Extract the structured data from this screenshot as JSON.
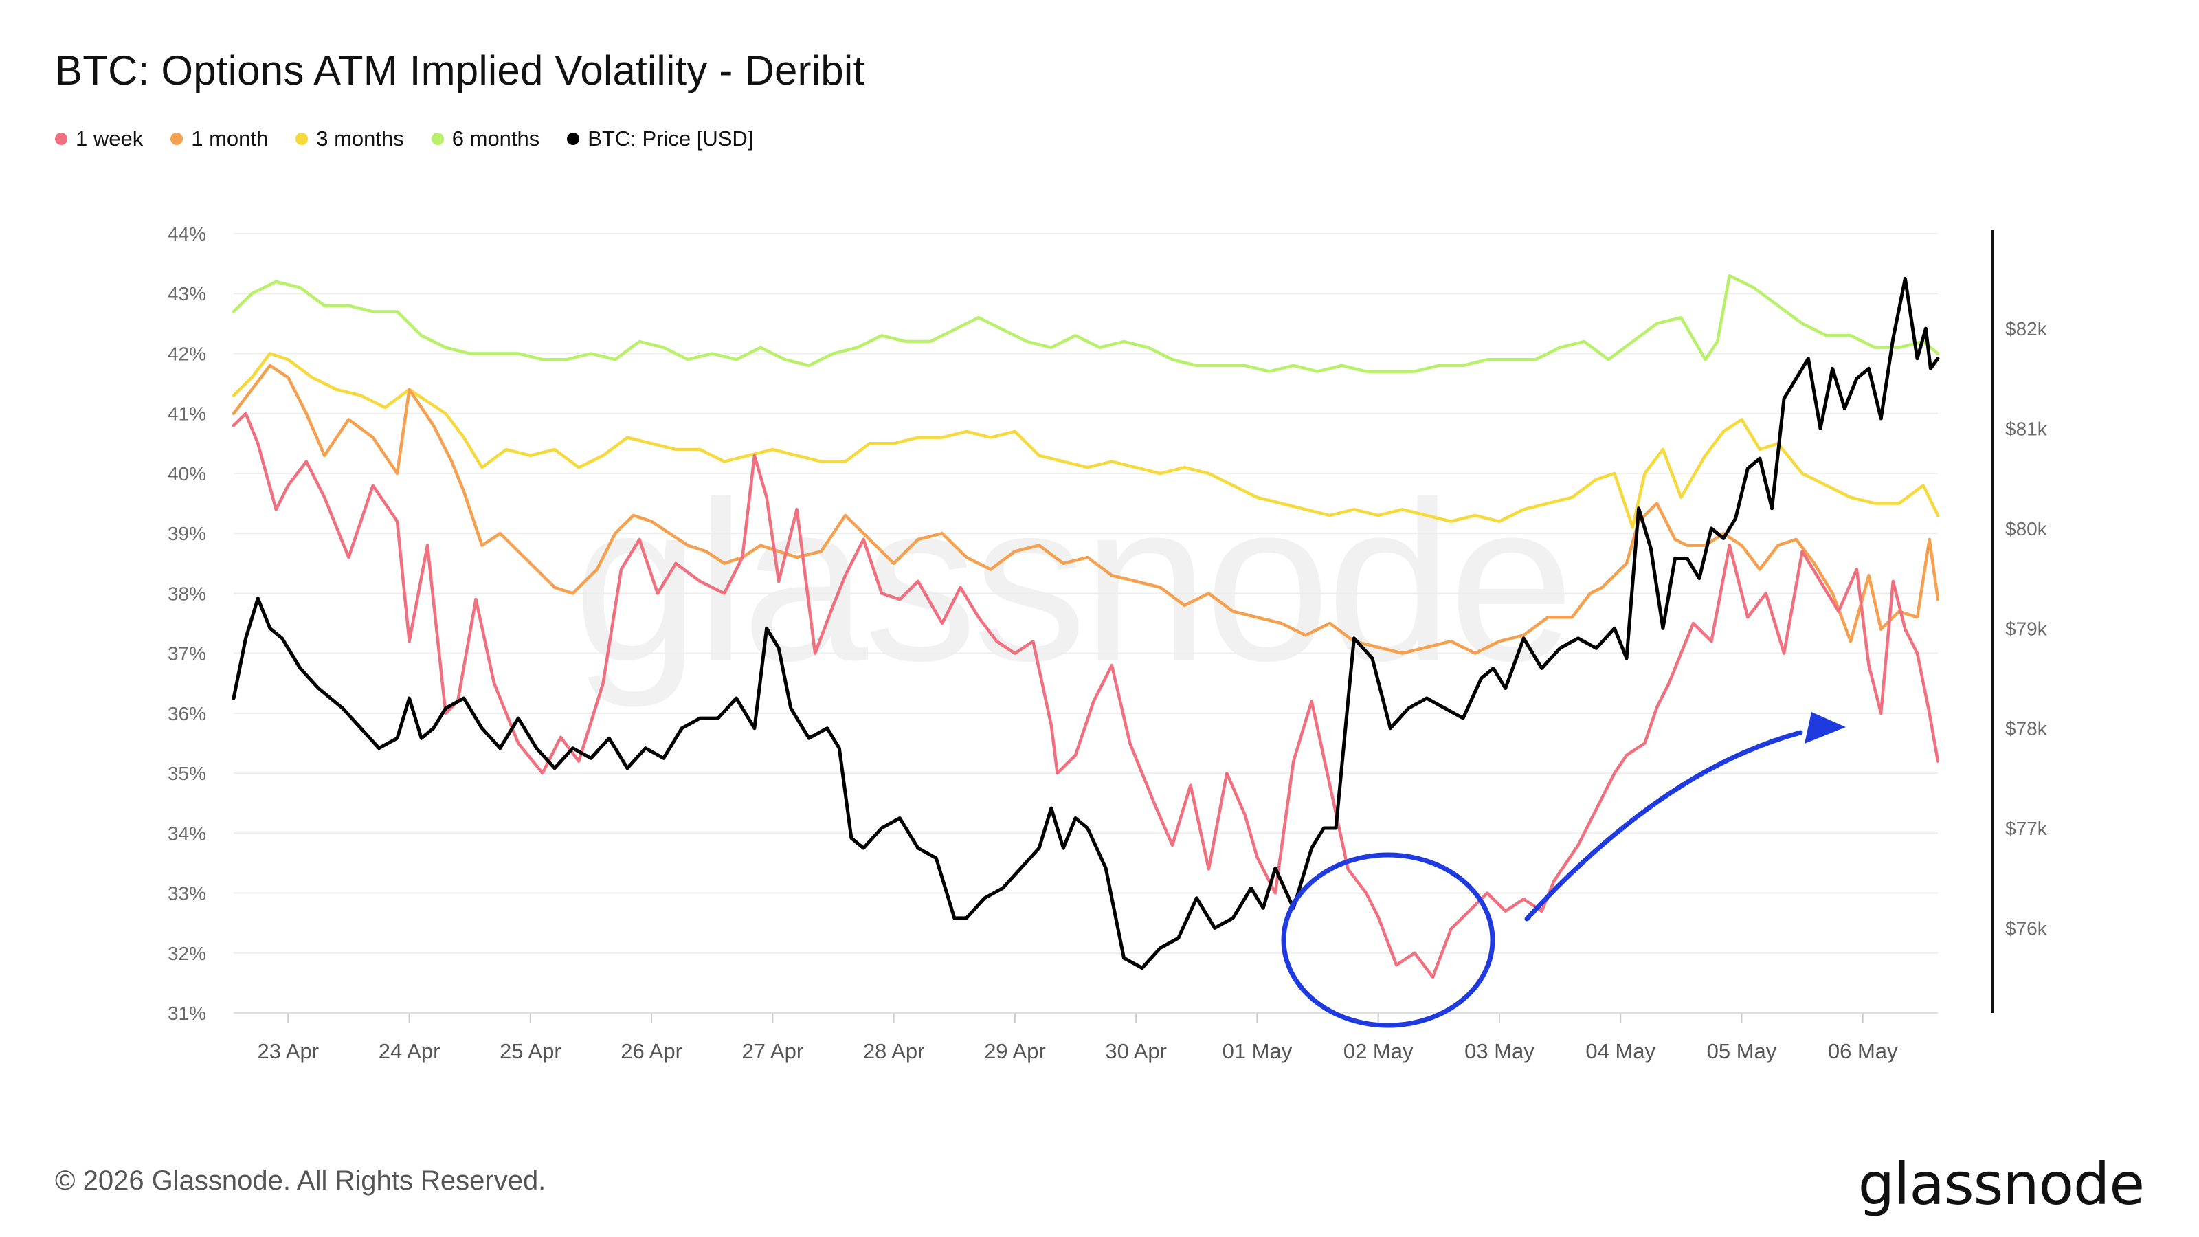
{
  "header": {
    "title": "BTC: Options ATM Implied Volatility - Deribit"
  },
  "legend": [
    {
      "label": "1 week",
      "color": "#f0707f"
    },
    {
      "label": "1 month",
      "color": "#f5a04e"
    },
    {
      "label": "3 months",
      "color": "#f6d93c"
    },
    {
      "label": "6 months",
      "color": "#b8f06a"
    },
    {
      "label": "BTC: Price [USD]",
      "color": "#000000"
    }
  ],
  "footer": {
    "copyright": "© 2026 Glassnode. All Rights Reserved.",
    "logo": "glassnode"
  },
  "watermark": "glassnode",
  "chart_data": {
    "type": "line",
    "title": "BTC: Options ATM Implied Volatility - Deribit",
    "xlabel": "",
    "ylabel_left": "",
    "ylabel_right": "",
    "x_ticks": [
      "23 Apr",
      "24 Apr",
      "25 Apr",
      "26 Apr",
      "27 Apr",
      "28 Apr",
      "29 Apr",
      "30 Apr",
      "01 May",
      "02 May",
      "03 May",
      "04 May",
      "05 May",
      "06 May"
    ],
    "x_range_days": [
      22.55,
      36.62
    ],
    "y_left_ticks": [
      "31%",
      "32%",
      "33%",
      "34%",
      "35%",
      "36%",
      "37%",
      "38%",
      "39%",
      "40%",
      "41%",
      "42%",
      "43%",
      "44%"
    ],
    "ylim_left": [
      31,
      44
    ],
    "y_right_ticks": [
      "$76k",
      "$77k",
      "$78k",
      "$79k",
      "$80k",
      "$81k",
      "$82k"
    ],
    "ylim_right": [
      75150,
      82950
    ],
    "grid": true,
    "legend_position": "top-left",
    "series": [
      {
        "name": "1 week",
        "axis": "left",
        "color": "#f0707f",
        "x": [
          22.55,
          22.65,
          22.75,
          22.9,
          23.0,
          23.15,
          23.3,
          23.5,
          23.7,
          23.9,
          24.0,
          24.15,
          24.3,
          24.4,
          24.55,
          24.7,
          24.9,
          25.1,
          25.25,
          25.4,
          25.6,
          25.75,
          25.9,
          26.05,
          26.2,
          26.4,
          26.6,
          26.75,
          26.85,
          26.95,
          27.05,
          27.2,
          27.35,
          27.5,
          27.6,
          27.75,
          27.9,
          28.05,
          28.2,
          28.4,
          28.55,
          28.7,
          28.85,
          29.0,
          29.15,
          29.3,
          29.35,
          29.5,
          29.65,
          29.8,
          29.95,
          30.15,
          30.3,
          30.45,
          30.6,
          30.75,
          30.9,
          31.0,
          31.15,
          31.3,
          31.45,
          31.6,
          31.75,
          31.9,
          32.0,
          32.15,
          32.3,
          32.45,
          32.6,
          32.75,
          32.9,
          33.05,
          33.2,
          33.35,
          33.45,
          33.55,
          33.65,
          33.75,
          33.85,
          33.95,
          34.05,
          34.2,
          34.3,
          34.4,
          34.5,
          34.6,
          34.75,
          34.9,
          35.05,
          35.2,
          35.35,
          35.5,
          35.65,
          35.8,
          35.95,
          36.05,
          36.15,
          36.25,
          36.35,
          36.45,
          36.55,
          36.62
        ],
        "values": [
          40.8,
          41.0,
          40.5,
          39.4,
          39.8,
          40.2,
          39.6,
          38.6,
          39.8,
          39.2,
          37.2,
          38.8,
          36.0,
          36.2,
          37.9,
          36.5,
          35.5,
          35.0,
          35.6,
          35.2,
          36.5,
          38.4,
          38.9,
          38.0,
          38.5,
          38.2,
          38.0,
          38.6,
          40.3,
          39.6,
          38.2,
          39.4,
          37.0,
          37.8,
          38.3,
          38.9,
          38.0,
          37.9,
          38.2,
          37.5,
          38.1,
          37.6,
          37.2,
          37.0,
          37.2,
          35.8,
          35.0,
          35.3,
          36.2,
          36.8,
          35.5,
          34.5,
          33.8,
          34.8,
          33.4,
          35.0,
          34.3,
          33.6,
          33.0,
          35.2,
          36.2,
          34.8,
          33.4,
          33.0,
          32.6,
          31.8,
          32.0,
          31.6,
          32.4,
          32.7,
          33.0,
          32.7,
          32.9,
          32.7,
          33.2,
          33.5,
          33.8,
          34.2,
          34.6,
          35.0,
          35.3,
          35.5,
          36.1,
          36.5,
          37.0,
          37.5,
          37.2,
          38.8,
          37.6,
          38.0,
          37.0,
          38.7,
          38.2,
          37.7,
          38.4,
          36.8,
          36.0,
          38.2,
          37.4,
          37.0,
          36.0,
          35.2
        ]
      },
      {
        "name": "1 month",
        "axis": "left",
        "color": "#f5a04e",
        "x": [
          22.55,
          22.7,
          22.85,
          23.0,
          23.15,
          23.3,
          23.5,
          23.7,
          23.9,
          24.0,
          24.2,
          24.35,
          24.45,
          24.6,
          24.75,
          24.9,
          25.05,
          25.2,
          25.35,
          25.55,
          25.7,
          25.85,
          26.0,
          26.15,
          26.3,
          26.45,
          26.6,
          26.75,
          26.9,
          27.05,
          27.2,
          27.4,
          27.6,
          27.8,
          28.0,
          28.2,
          28.4,
          28.6,
          28.8,
          29.0,
          29.2,
          29.4,
          29.6,
          29.8,
          30.0,
          30.2,
          30.4,
          30.6,
          30.8,
          31.0,
          31.2,
          31.4,
          31.6,
          31.8,
          32.0,
          32.2,
          32.4,
          32.6,
          32.8,
          33.0,
          33.2,
          33.4,
          33.6,
          33.75,
          33.85,
          33.95,
          34.05,
          34.15,
          34.3,
          34.45,
          34.55,
          34.7,
          34.85,
          35.0,
          35.15,
          35.3,
          35.45,
          35.6,
          35.75,
          35.9,
          36.05,
          36.15,
          36.3,
          36.45,
          36.55,
          36.62
        ],
        "values": [
          41.0,
          41.4,
          41.8,
          41.6,
          41.0,
          40.3,
          40.9,
          40.6,
          40.0,
          41.4,
          40.8,
          40.2,
          39.7,
          38.8,
          39.0,
          38.7,
          38.4,
          38.1,
          38.0,
          38.4,
          39.0,
          39.3,
          39.2,
          39.0,
          38.8,
          38.7,
          38.5,
          38.6,
          38.8,
          38.7,
          38.6,
          38.7,
          39.3,
          38.9,
          38.5,
          38.9,
          39.0,
          38.6,
          38.4,
          38.7,
          38.8,
          38.5,
          38.6,
          38.3,
          38.2,
          38.1,
          37.8,
          38.0,
          37.7,
          37.6,
          37.5,
          37.3,
          37.5,
          37.2,
          37.1,
          37.0,
          37.1,
          37.2,
          37.0,
          37.2,
          37.3,
          37.6,
          37.6,
          38.0,
          38.1,
          38.3,
          38.5,
          39.2,
          39.5,
          38.9,
          38.8,
          38.8,
          39.0,
          38.8,
          38.4,
          38.8,
          38.9,
          38.5,
          38.0,
          37.2,
          38.3,
          37.4,
          37.7,
          37.6,
          38.9,
          37.9
        ]
      },
      {
        "name": "3 months",
        "axis": "left",
        "color": "#f6d93c",
        "x": [
          22.55,
          22.7,
          22.85,
          23.0,
          23.2,
          23.4,
          23.6,
          23.8,
          24.0,
          24.15,
          24.3,
          24.45,
          24.6,
          24.8,
          25.0,
          25.2,
          25.4,
          25.6,
          25.8,
          26.0,
          26.2,
          26.4,
          26.6,
          26.8,
          27.0,
          27.2,
          27.4,
          27.6,
          27.8,
          28.0,
          28.2,
          28.4,
          28.6,
          28.8,
          29.0,
          29.2,
          29.4,
          29.6,
          29.8,
          30.0,
          30.2,
          30.4,
          30.6,
          30.8,
          31.0,
          31.2,
          31.4,
          31.6,
          31.8,
          32.0,
          32.2,
          32.4,
          32.6,
          32.8,
          33.0,
          33.2,
          33.4,
          33.6,
          33.8,
          33.95,
          34.1,
          34.2,
          34.35,
          34.5,
          34.7,
          34.85,
          35.0,
          35.15,
          35.3,
          35.5,
          35.7,
          35.9,
          36.1,
          36.3,
          36.5,
          36.62
        ],
        "values": [
          41.3,
          41.6,
          42.0,
          41.9,
          41.6,
          41.4,
          41.3,
          41.1,
          41.4,
          41.2,
          41.0,
          40.6,
          40.1,
          40.4,
          40.3,
          40.4,
          40.1,
          40.3,
          40.6,
          40.5,
          40.4,
          40.4,
          40.2,
          40.3,
          40.4,
          40.3,
          40.2,
          40.2,
          40.5,
          40.5,
          40.6,
          40.6,
          40.7,
          40.6,
          40.7,
          40.3,
          40.2,
          40.1,
          40.2,
          40.1,
          40.0,
          40.1,
          40.0,
          39.8,
          39.6,
          39.5,
          39.4,
          39.3,
          39.4,
          39.3,
          39.4,
          39.3,
          39.2,
          39.3,
          39.2,
          39.4,
          39.5,
          39.6,
          39.9,
          40.0,
          39.1,
          40.0,
          40.4,
          39.6,
          40.3,
          40.7,
          40.9,
          40.4,
          40.5,
          40.0,
          39.8,
          39.6,
          39.5,
          39.5,
          39.8,
          39.3
        ]
      },
      {
        "name": "6 months",
        "axis": "left",
        "color": "#b8f06a",
        "x": [
          22.55,
          22.7,
          22.9,
          23.1,
          23.3,
          23.5,
          23.7,
          23.9,
          24.1,
          24.3,
          24.5,
          24.7,
          24.9,
          25.1,
          25.3,
          25.5,
          25.7,
          25.9,
          26.1,
          26.3,
          26.5,
          26.7,
          26.9,
          27.1,
          27.3,
          27.5,
          27.7,
          27.9,
          28.1,
          28.3,
          28.5,
          28.7,
          28.9,
          29.1,
          29.3,
          29.5,
          29.7,
          29.9,
          30.1,
          30.3,
          30.5,
          30.7,
          30.9,
          31.1,
          31.3,
          31.5,
          31.7,
          31.9,
          32.1,
          32.3,
          32.5,
          32.7,
          32.9,
          33.1,
          33.3,
          33.5,
          33.7,
          33.9,
          34.1,
          34.3,
          34.5,
          34.7,
          34.8,
          34.9,
          35.1,
          35.3,
          35.5,
          35.7,
          35.9,
          36.1,
          36.3,
          36.5,
          36.62
        ],
        "values": [
          42.7,
          43.0,
          43.2,
          43.1,
          42.8,
          42.8,
          42.7,
          42.7,
          42.3,
          42.1,
          42.0,
          42.0,
          42.0,
          41.9,
          41.9,
          42.0,
          41.9,
          42.2,
          42.1,
          41.9,
          42.0,
          41.9,
          42.1,
          41.9,
          41.8,
          42.0,
          42.1,
          42.3,
          42.2,
          42.2,
          42.4,
          42.6,
          42.4,
          42.2,
          42.1,
          42.3,
          42.1,
          42.2,
          42.1,
          41.9,
          41.8,
          41.8,
          41.8,
          41.7,
          41.8,
          41.7,
          41.8,
          41.7,
          41.7,
          41.7,
          41.8,
          41.8,
          41.9,
          41.9,
          41.9,
          42.1,
          42.2,
          41.9,
          42.2,
          42.5,
          42.6,
          41.9,
          42.2,
          43.3,
          43.1,
          42.8,
          42.5,
          42.3,
          42.3,
          42.1,
          42.1,
          42.2,
          42.0
        ]
      },
      {
        "name": "BTC: Price [USD]",
        "axis": "right",
        "color": "#000000",
        "x": [
          22.55,
          22.65,
          22.75,
          22.85,
          22.95,
          23.1,
          23.25,
          23.45,
          23.6,
          23.75,
          23.9,
          24.0,
          24.1,
          24.2,
          24.3,
          24.45,
          24.6,
          24.75,
          24.9,
          25.05,
          25.2,
          25.35,
          25.5,
          25.65,
          25.8,
          25.95,
          26.1,
          26.25,
          26.4,
          26.55,
          26.7,
          26.85,
          26.95,
          27.05,
          27.15,
          27.3,
          27.45,
          27.55,
          27.65,
          27.75,
          27.9,
          28.05,
          28.2,
          28.35,
          28.5,
          28.6,
          28.75,
          28.9,
          29.05,
          29.2,
          29.3,
          29.4,
          29.5,
          29.6,
          29.75,
          29.9,
          30.05,
          30.2,
          30.35,
          30.5,
          30.65,
          30.8,
          30.95,
          31.05,
          31.15,
          31.3,
          31.45,
          31.55,
          31.65,
          31.8,
          31.95,
          32.1,
          32.25,
          32.4,
          32.55,
          32.7,
          32.85,
          32.95,
          33.05,
          33.2,
          33.35,
          33.5,
          33.65,
          33.8,
          33.95,
          34.05,
          34.15,
          34.25,
          34.35,
          34.45,
          34.55,
          34.65,
          34.75,
          34.85,
          34.95,
          35.05,
          35.15,
          35.25,
          35.35,
          35.45,
          35.55,
          35.65,
          35.75,
          35.85,
          35.95,
          36.05,
          36.15,
          36.25,
          36.35,
          36.45,
          36.52,
          36.56,
          36.62
        ],
        "values": [
          78.3,
          78.9,
          79.3,
          79.0,
          78.9,
          78.6,
          78.4,
          78.2,
          78.0,
          77.8,
          77.9,
          78.3,
          77.9,
          78.0,
          78.2,
          78.3,
          78.0,
          77.8,
          78.1,
          77.8,
          77.6,
          77.8,
          77.7,
          77.9,
          77.6,
          77.8,
          77.7,
          78.0,
          78.1,
          78.1,
          78.3,
          78.0,
          79.0,
          78.8,
          78.2,
          77.9,
          78.0,
          77.8,
          76.9,
          76.8,
          77.0,
          77.1,
          76.8,
          76.7,
          76.1,
          76.1,
          76.3,
          76.4,
          76.6,
          76.8,
          77.2,
          76.8,
          77.1,
          77.0,
          76.6,
          75.7,
          75.6,
          75.8,
          75.9,
          76.3,
          76.0,
          76.1,
          76.4,
          76.2,
          76.6,
          76.2,
          76.8,
          77.0,
          77.0,
          78.9,
          78.7,
          78.0,
          78.2,
          78.3,
          78.2,
          78.1,
          78.5,
          78.6,
          78.4,
          78.9,
          78.6,
          78.8,
          78.9,
          78.8,
          79.0,
          78.7,
          80.2,
          79.8,
          79.0,
          79.7,
          79.7,
          79.5,
          80.0,
          79.9,
          80.1,
          80.6,
          80.7,
          80.2,
          81.3,
          81.5,
          81.7,
          81.0,
          81.6,
          81.2,
          81.5,
          81.6,
          81.1,
          81.9,
          82.5,
          81.7,
          82.0,
          81.6,
          81.7
        ]
      }
    ],
    "annotations": [
      {
        "type": "ellipse",
        "color": "#1f3be0",
        "target": "02 May 1 week low"
      },
      {
        "type": "arrow",
        "color": "#1f3be0",
        "direction": "up-right"
      }
    ]
  }
}
